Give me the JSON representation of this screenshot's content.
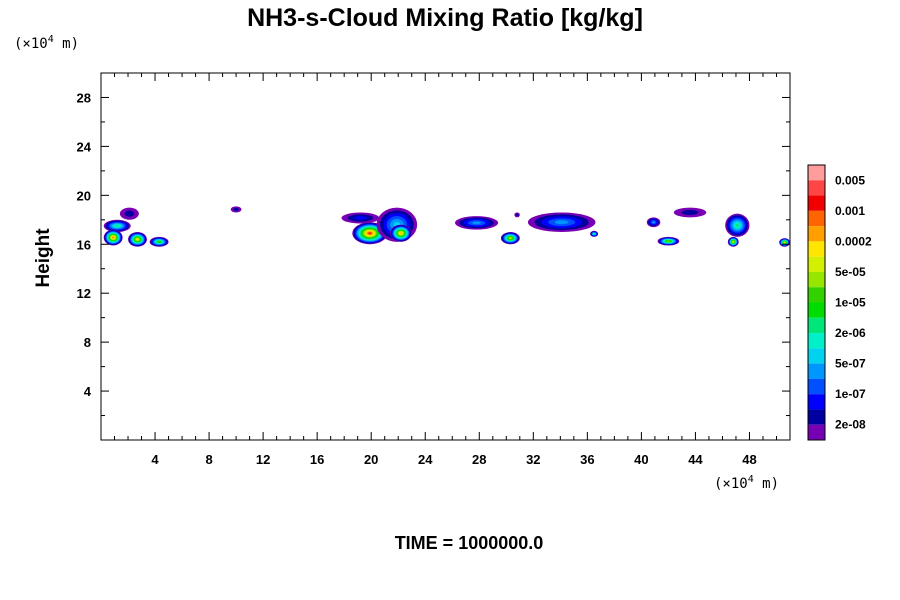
{
  "chart_data": {
    "type": "heatmap",
    "title": "NH3-s-Cloud Mixing Ratio [kg/kg]",
    "xlabel": "",
    "ylabel": "Height",
    "x_unit": {
      "prefix": "(×10",
      "exp": "4",
      "suffix": " m)"
    },
    "y_unit": {
      "prefix": "(×10",
      "exp": "4",
      "suffix": " m)"
    },
    "xlim": [
      0,
      51
    ],
    "ylim": [
      0,
      30
    ],
    "x_ticks": [
      4,
      8,
      12,
      16,
      20,
      24,
      28,
      32,
      36,
      40,
      44,
      48
    ],
    "y_ticks": [
      4,
      8,
      12,
      16,
      20,
      24,
      28
    ],
    "x_minor_step": 1,
    "y_minor_step": 2,
    "grid": false,
    "legend_position": "right",
    "colorbar": {
      "labels": [
        "0.005",
        "0.001",
        "0.0002",
        "5e-05",
        "1e-05",
        "2e-06",
        "5e-07",
        "1e-07",
        "2e-08"
      ],
      "colors_top_to_bottom": [
        "#ff9c9c",
        "#ff4646",
        "#f00000",
        "#ff6400",
        "#ffa000",
        "#ffe600",
        "#d2f000",
        "#96e600",
        "#32d200",
        "#00dc00",
        "#00e678",
        "#00f0c8",
        "#00d2f0",
        "#0096ff",
        "#0050ff",
        "#0000ff",
        "#0000a0",
        "#7800b4"
      ]
    },
    "clouds": [
      {
        "x0": 0.2,
        "x1": 2.2,
        "ybot": 17.0,
        "ytop": 18.0,
        "level": 10
      },
      {
        "x0": 1.4,
        "x1": 2.8,
        "ybot": 18.0,
        "ytop": 19.0,
        "level": 16
      },
      {
        "x0": 0.2,
        "x1": 1.6,
        "ybot": 15.9,
        "ytop": 17.2,
        "level": 3
      },
      {
        "x0": 2.0,
        "x1": 3.4,
        "ybot": 15.8,
        "ytop": 17.0,
        "level": 5
      },
      {
        "x0": 3.6,
        "x1": 5.0,
        "ybot": 15.8,
        "ytop": 16.6,
        "level": 8
      },
      {
        "x0": 9.6,
        "x1": 10.4,
        "ybot": 18.6,
        "ytop": 19.1,
        "level": 17
      },
      {
        "x0": 17.8,
        "x1": 20.6,
        "ybot": 17.7,
        "ytop": 18.6,
        "level": 15
      },
      {
        "x0": 18.6,
        "x1": 21.2,
        "ybot": 16.0,
        "ytop": 17.8,
        "level": 2
      },
      {
        "x0": 20.4,
        "x1": 23.4,
        "ybot": 16.2,
        "ytop": 19.0,
        "level": 12
      },
      {
        "x0": 21.4,
        "x1": 23.0,
        "ybot": 16.2,
        "ytop": 17.6,
        "level": 4
      },
      {
        "x0": 26.2,
        "x1": 29.4,
        "ybot": 17.2,
        "ytop": 18.3,
        "level": 13
      },
      {
        "x0": 29.6,
        "x1": 31.0,
        "ybot": 16.0,
        "ytop": 17.0,
        "level": 6
      },
      {
        "x0": 30.6,
        "x1": 31.0,
        "ybot": 18.2,
        "ytop": 18.6,
        "level": 16
      },
      {
        "x0": 31.6,
        "x1": 36.6,
        "ybot": 17.0,
        "ytop": 18.6,
        "level": 13
      },
      {
        "x0": 36.2,
        "x1": 36.8,
        "ybot": 16.6,
        "ytop": 17.1,
        "level": 10
      },
      {
        "x0": 40.4,
        "x1": 41.4,
        "ybot": 17.4,
        "ytop": 18.2,
        "level": 13
      },
      {
        "x0": 41.2,
        "x1": 42.8,
        "ybot": 15.9,
        "ytop": 16.6,
        "level": 7
      },
      {
        "x0": 42.4,
        "x1": 44.8,
        "ybot": 18.2,
        "ytop": 19.0,
        "level": 16
      },
      {
        "x0": 46.2,
        "x1": 48.0,
        "ybot": 16.6,
        "ytop": 18.5,
        "level": 10
      },
      {
        "x0": 46.4,
        "x1": 47.2,
        "ybot": 15.8,
        "ytop": 16.6,
        "level": 5
      },
      {
        "x0": 50.2,
        "x1": 51.0,
        "ybot": 15.8,
        "ytop": 16.5,
        "level": 5
      }
    ]
  },
  "footer": {
    "time_label": "TIME = 1000000.0"
  }
}
